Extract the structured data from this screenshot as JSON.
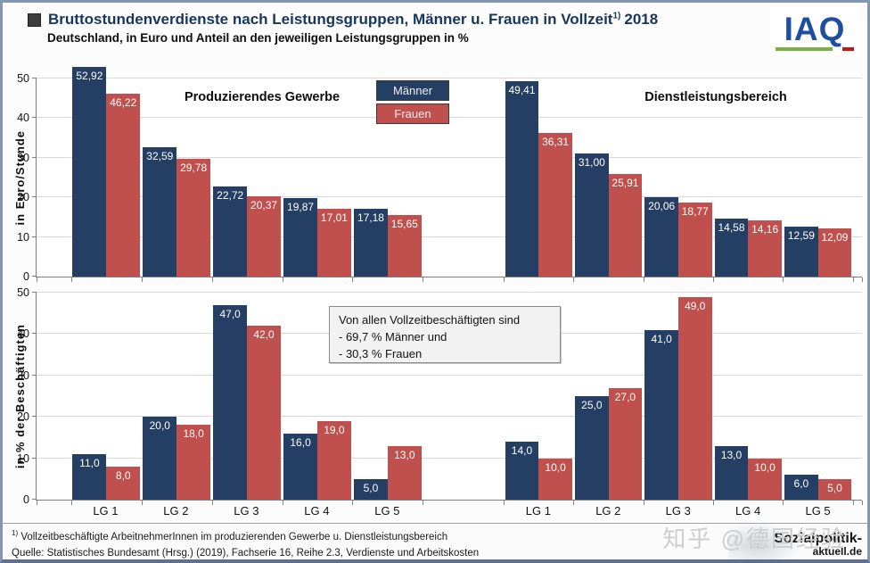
{
  "header": {
    "title_main": "Bruttostundenverdienste nach Leistungsgruppen, Männer u. Frauen in Vollzeit",
    "title_sup": "1)",
    "title_year": "2018",
    "subtitle": "Deutschland, in Euro und Anteil an den jeweiligen Leistungsgruppen in %",
    "logo_text": "IAQ"
  },
  "colors": {
    "maenner": "#243f63",
    "frauen": "#c0504d",
    "title_blue": "#17365d",
    "grid": "#d9d9d9",
    "axis": "#7f7f7f",
    "logo_blue": "#1d4f9e",
    "logo_green": "#79b243",
    "logo_red": "#cc1016"
  },
  "legend": {
    "items": [
      {
        "label": "Männer",
        "color": "#243f63"
      },
      {
        "label": "Frauen",
        "color": "#c0504d"
      }
    ]
  },
  "chart_data": [
    {
      "type": "bar",
      "panel": "hourly-earnings",
      "ylabel": "in Euro/Stunde",
      "ylim": [
        0,
        50
      ],
      "yticks": [
        0,
        10,
        20,
        30,
        40,
        50
      ],
      "decimals": 2,
      "grid": true,
      "legend_position": "top-center",
      "show_x_labels": false,
      "categories": [
        "LG 1",
        "LG 2",
        "LG 3",
        "LG 4",
        "LG 5"
      ],
      "sections": [
        {
          "label": "Produzierendes Gewerbe",
          "series": [
            {
              "name": "Männer",
              "values": [
                52.92,
                32.59,
                22.72,
                19.87,
                17.18
              ]
            },
            {
              "name": "Frauen",
              "values": [
                46.22,
                29.78,
                20.37,
                17.01,
                15.65
              ]
            }
          ]
        },
        {
          "label": "Dienstleistungsbereich",
          "series": [
            {
              "name": "Männer",
              "values": [
                49.41,
                31.0,
                20.06,
                14.58,
                12.59
              ]
            },
            {
              "name": "Frauen",
              "values": [
                36.31,
                25.91,
                18.77,
                14.16,
                12.09
              ]
            }
          ]
        }
      ]
    },
    {
      "type": "bar",
      "panel": "share-of-employees",
      "ylabel": "in % der Beschäftigten",
      "ylim": [
        0,
        50
      ],
      "yticks": [
        0,
        10,
        20,
        30,
        40,
        50
      ],
      "decimals": 1,
      "grid": true,
      "show_x_labels": true,
      "categories": [
        "LG 1",
        "LG 2",
        "LG 3",
        "LG 4",
        "LG 5"
      ],
      "sections": [
        {
          "label": "Produzierendes Gewerbe",
          "series": [
            {
              "name": "Männer",
              "values": [
                11.0,
                20.0,
                47.0,
                16.0,
                5.0
              ]
            },
            {
              "name": "Frauen",
              "values": [
                8.0,
                18.0,
                42.0,
                19.0,
                13.0
              ]
            }
          ]
        },
        {
          "label": "Dienstleistungsbereich",
          "series": [
            {
              "name": "Männer",
              "values": [
                14.0,
                25.0,
                41.0,
                13.0,
                6.0
              ]
            },
            {
              "name": "Frauen",
              "values": [
                10.0,
                27.0,
                49.0,
                10.0,
                5.0
              ]
            }
          ]
        }
      ],
      "annotation": {
        "lines": [
          "Von allen Vollzeitbeschäftigten sind",
          "- 69,7 % Männer und",
          "- 30,3 % Frauen"
        ]
      }
    }
  ],
  "footer": {
    "footnote_sup": "1)",
    "footnote": " Vollzeitbeschäftigte ArbeitnehmerInnen im produzierenden Gewerbe u. Dienstleistungsbereich",
    "source": "Quelle: Statistisches Bundesamt (Hrsg.) (2019), Fachserie 16, Reihe 2.3, Verdienste und Arbeitskosten"
  },
  "watermark": {
    "text": "知乎 @德国经验"
  },
  "site_logo": {
    "line1": "Sozialpolitik-",
    "line2": "aktuell.de"
  }
}
